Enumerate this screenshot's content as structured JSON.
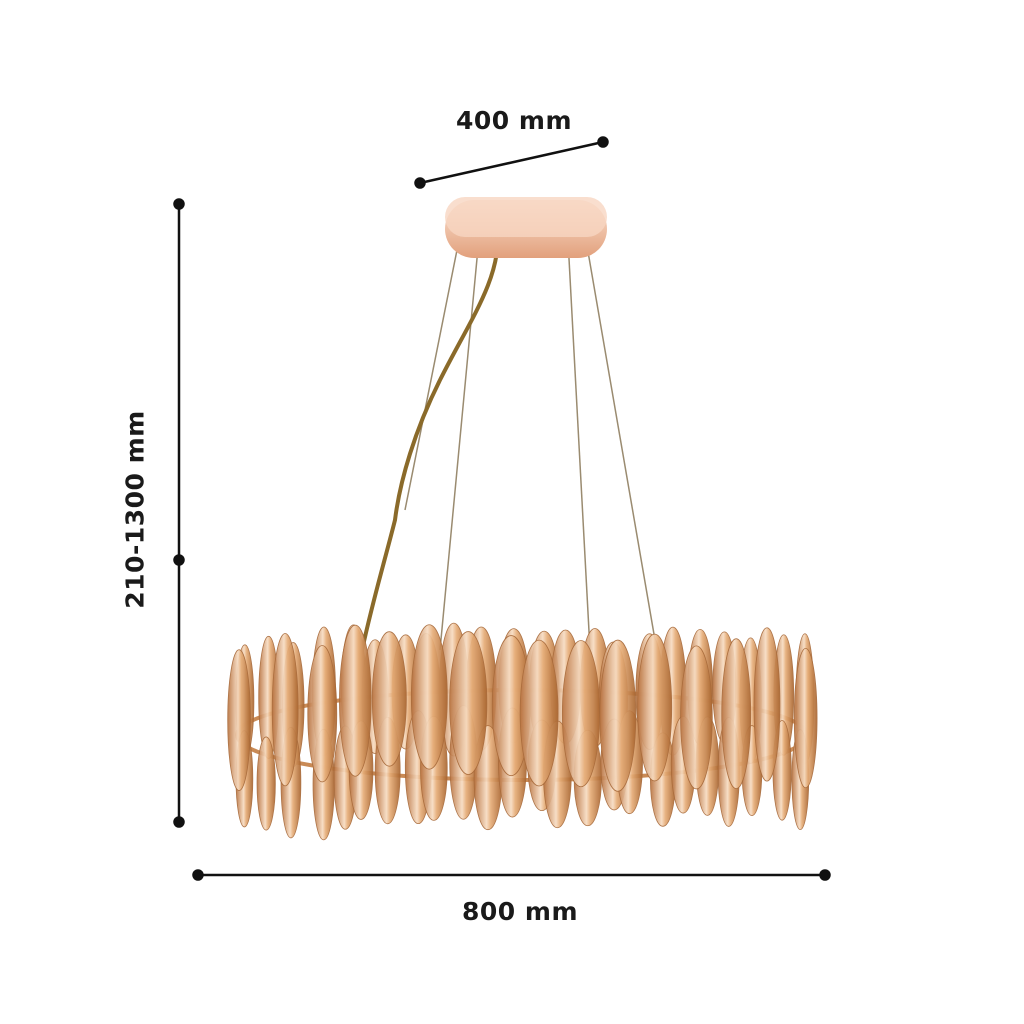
{
  "dimensions": {
    "top_width": "400 mm",
    "height_range": "210-1300 mm",
    "bottom_width": "800 mm"
  },
  "colors": {
    "dimension_line": "#111111",
    "canopy": "#f2c2a4",
    "crystal": "#d9985e",
    "crystal_light": "#f6dcc0",
    "wire": "#8c7a5a"
  }
}
